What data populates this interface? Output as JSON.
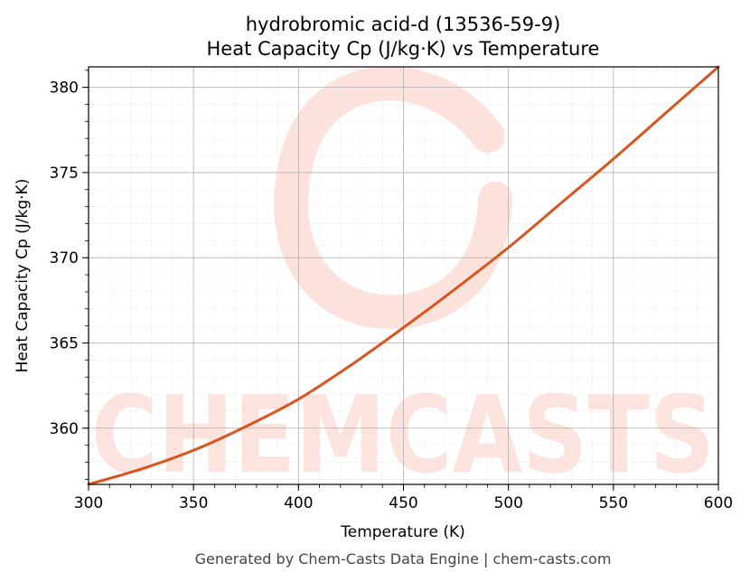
{
  "chart_data": {
    "type": "line",
    "title_line1": "hydrobromic acid-d (13536-59-9)",
    "title_line2": "Heat Capacity Cp (J/kg·K) vs Temperature",
    "xlabel": "Temperature (K)",
    "ylabel": "Heat Capacity Cp (J/kg·K)",
    "xlim": [
      300,
      600
    ],
    "ylim": [
      356.7,
      381.2
    ],
    "xticks": [
      300,
      350,
      400,
      450,
      500,
      550,
      600
    ],
    "yticks": [
      360,
      365,
      370,
      375,
      380
    ],
    "grid": true,
    "series": [
      {
        "color": "#d9541e",
        "x": [
          300,
          325,
          350,
          375,
          400,
          425,
          450,
          475,
          500,
          525,
          550,
          575,
          600
        ],
        "y": [
          356.7,
          357.6,
          358.7,
          360.1,
          361.7,
          363.7,
          365.9,
          368.2,
          370.6,
          373.2,
          375.8,
          378.5,
          381.2
        ]
      }
    ]
  },
  "watermark": {
    "text": "CHEMCASTS",
    "color": "#fcd8d0"
  },
  "footer": "Generated by Chem-Casts Data Engine | chem-casts.com"
}
